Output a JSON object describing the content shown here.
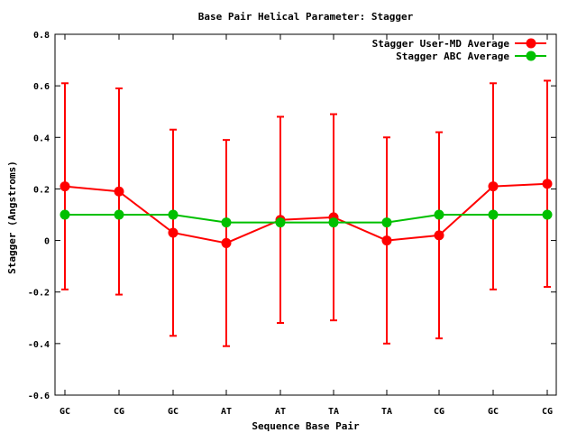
{
  "chart_data": {
    "type": "line",
    "title": "Base Pair Helical Parameter: Stagger",
    "xlabel": "Sequence Base Pair",
    "ylabel": "Stagger (Angstroms)",
    "categories": [
      "GC",
      "CG",
      "GC",
      "AT",
      "AT",
      "TA",
      "TA",
      "CG",
      "GC",
      "CG"
    ],
    "ylim": [
      -0.6,
      0.8
    ],
    "yticks": [
      -0.6,
      -0.4,
      -0.2,
      0,
      0.2,
      0.4,
      0.6,
      0.8
    ],
    "ytick_labels": [
      "-0.6",
      "-0.4",
      "-0.2",
      "0",
      "0.2",
      "0.4",
      "0.6",
      "0.8"
    ],
    "grid": false,
    "legend_position": "top-right",
    "series": [
      {
        "name": "Stagger User-MD Average",
        "color": "#ff0000",
        "values": [
          0.21,
          0.19,
          0.03,
          -0.01,
          0.08,
          0.09,
          0.0,
          0.02,
          0.21,
          0.22
        ],
        "error_low": [
          -0.19,
          -0.21,
          -0.37,
          -0.41,
          -0.32,
          -0.31,
          -0.4,
          -0.38,
          -0.19,
          -0.18
        ],
        "error_high": [
          0.61,
          0.59,
          0.43,
          0.39,
          0.48,
          0.49,
          0.4,
          0.42,
          0.61,
          0.62
        ]
      },
      {
        "name": "Stagger ABC Average",
        "color": "#00c000",
        "values": [
          0.1,
          0.1,
          0.1,
          0.07,
          0.07,
          0.07,
          0.07,
          0.1,
          0.1,
          0.1
        ]
      }
    ]
  }
}
